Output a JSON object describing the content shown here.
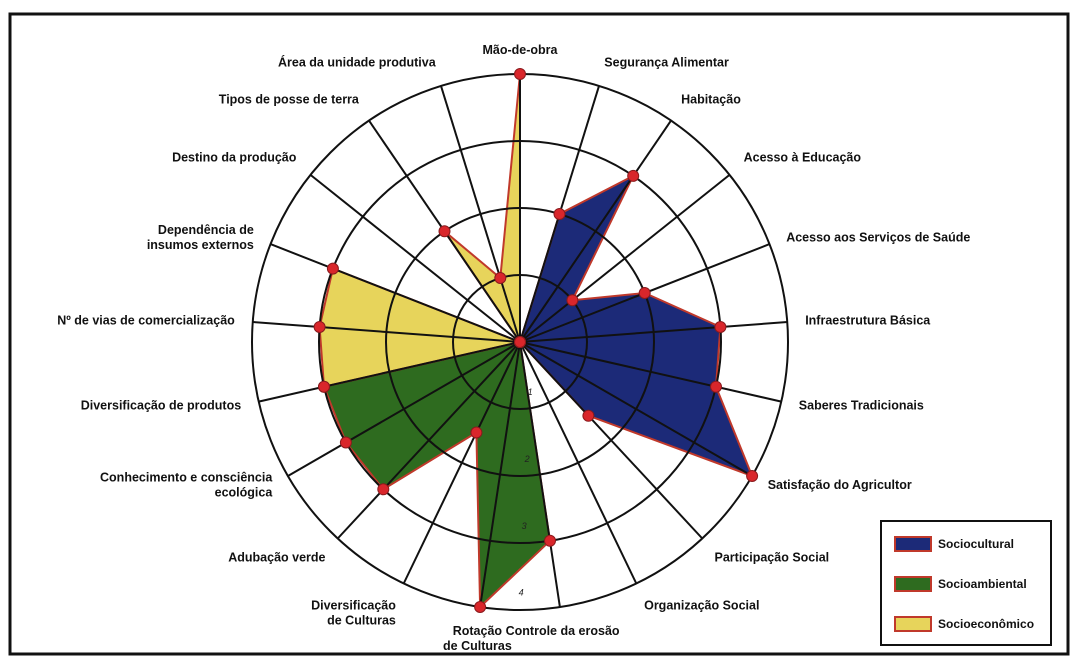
{
  "chart_data": {
    "type": "radar",
    "scale_max": 4,
    "scale_labels": [
      "1",
      "2",
      "3",
      "4"
    ],
    "axes": [
      "Mão-de-obra",
      "Segurança Alimentar",
      "Habitação",
      "Acesso à Educação",
      "Acesso aos Serviços de Saúde",
      "Infraestrutura Básica",
      "Saberes Tradicionais",
      "Satisfação do Agricultor",
      "Participação Social",
      "Organização Social",
      "Controle da erosão",
      "Rotação de Culturas",
      "Diversificação de Culturas",
      "Adubação verde",
      "Conhecimento e consciência ecológica",
      "Diversificação de produtos",
      "Nº de vias de comercialização",
      "Dependência de insumos externos",
      "Destino da produção",
      "Tipos de posse de terra",
      "Área da unidade produtiva"
    ],
    "axis_label_lines": [
      [
        "Mão-de-obra"
      ],
      [
        "Segurança Alimentar"
      ],
      [
        "Habitação"
      ],
      [
        "Acesso à Educação"
      ],
      [
        "Acesso aos Serviços de Saúde"
      ],
      [
        "Infraestrutura Básica"
      ],
      [
        "Saberes Tradicionais"
      ],
      [
        "Satisfação do Agricultor"
      ],
      [
        "Participação Social"
      ],
      [
        "Organização Social"
      ],
      [
        "Controle da erosão"
      ],
      [
        "Rotação",
        "de Culturas"
      ],
      [
        "Diversificação",
        "de Culturas"
      ],
      [
        "Adubação verde"
      ],
      [
        "Conhecimento e consciência",
        "ecológica"
      ],
      [
        "Diversificação de produtos"
      ],
      [
        "Nº de vias de comercialização"
      ],
      [
        "Dependência de",
        "insumos externos"
      ],
      [
        "Destino da produção"
      ],
      [
        "Tipos de posse de terra"
      ],
      [
        "Área da unidade produtiva"
      ]
    ],
    "series": [
      {
        "name": "Sociocultural",
        "color": "#1c2a78",
        "points": [
          {
            "axis": 1,
            "value": 2
          },
          {
            "axis": 2,
            "value": 3
          },
          {
            "axis": 3,
            "value": 1
          },
          {
            "axis": 4,
            "value": 2
          },
          {
            "axis": 5,
            "value": 3
          },
          {
            "axis": 6,
            "value": 3
          },
          {
            "axis": 7,
            "value": 4
          },
          {
            "axis": 8,
            "value": 1.5
          }
        ]
      },
      {
        "name": "Socioambiental",
        "color": "#2e6b1f",
        "points": [
          {
            "axis": 8,
            "value": 0
          },
          {
            "axis": 9,
            "value": 0
          },
          {
            "axis": 10,
            "value": 3
          },
          {
            "axis": 11,
            "value": 4
          },
          {
            "axis": 12,
            "value": 1.5
          },
          {
            "axis": 13,
            "value": 3
          },
          {
            "axis": 14,
            "value": 3
          },
          {
            "axis": 15,
            "value": 3
          }
        ]
      },
      {
        "name": "Socioeconômico",
        "color": "#e7d45b",
        "points": [
          {
            "axis": 15,
            "value": 3
          },
          {
            "axis": 16,
            "value": 3
          },
          {
            "axis": 17,
            "value": 3
          },
          {
            "axis": 18,
            "value": 0
          },
          {
            "axis": 19,
            "value": 2
          },
          {
            "axis": 20,
            "value": 1
          },
          {
            "axis": 0,
            "value": 4
          },
          {
            "axis": 1,
            "value": 0
          }
        ]
      }
    ],
    "marker_color": "#d9262b",
    "outline_color": "#c0392b",
    "grid": true,
    "legend_position": "bottom-right",
    "legend": [
      "Sociocultural",
      "Socioambiental",
      "Socioeconômico"
    ]
  }
}
